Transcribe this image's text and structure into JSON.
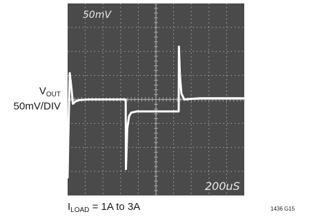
{
  "left_label": {
    "main": "V",
    "sub": "OUT"
  },
  "vertical_scale_label": "50mV/DIV",
  "bottom_label": {
    "main": "I",
    "sub": "LOAD",
    "rest": " = 1A to 3A"
  },
  "figure_code": "1436 G15",
  "screen_text": {
    "vertical_setting": "50mV",
    "time_setting": "200uS"
  },
  "colors": {
    "screen": "#4a4a4a",
    "grid": "#aaaaaa",
    "trace": "#ffffff"
  },
  "chart_data": {
    "type": "line",
    "title": "",
    "xlabel": "",
    "ylabel": "VOUT 50mV/DIV",
    "x_unit": "div (200us/div)",
    "y_unit": "div (50mV/div)",
    "grid": true,
    "divisions": {
      "x": 10,
      "y": 8
    },
    "series": [
      {
        "x": [
          0,
          0.04,
          0.12,
          0.22,
          0.3,
          0.45,
          0.7,
          1.2,
          3.2,
          3.29,
          3.3,
          3.38,
          3.48,
          3.6,
          3.9,
          4.4,
          6.2,
          6.29,
          6.3,
          6.36,
          6.44,
          6.6,
          6.95,
          7.5,
          8.5,
          10
        ],
        "y": [
          0.75,
          2.4,
          5.1,
          4.45,
          3.82,
          3.92,
          3.98,
          4.0,
          4.0,
          4.0,
          1.1,
          2.8,
          3.3,
          3.45,
          3.5,
          3.5,
          3.5,
          3.5,
          6.2,
          5.0,
          4.25,
          4.0,
          4.02,
          4.05,
          4.05,
          4.05
        ]
      }
    ]
  }
}
